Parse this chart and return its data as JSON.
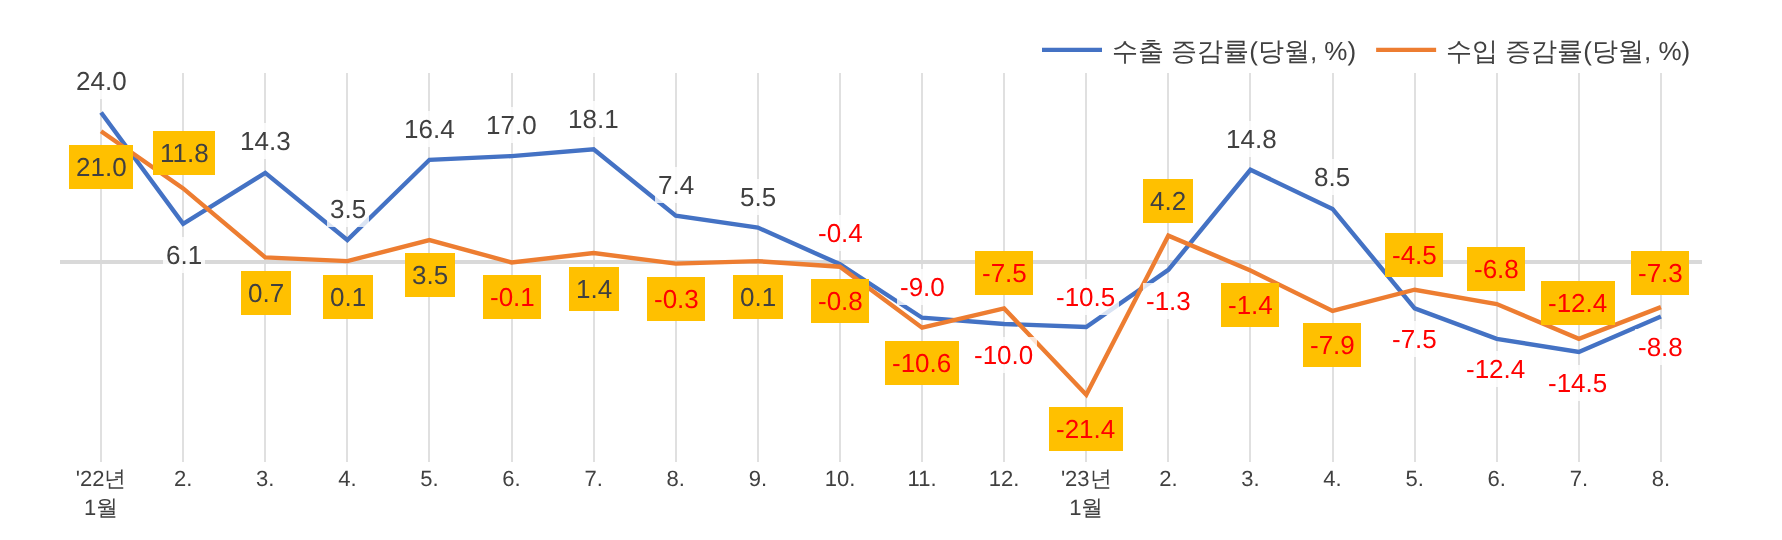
{
  "chart_data": {
    "type": "line",
    "categories": [
      "'22년\n1월",
      "2.",
      "3.",
      "4.",
      "5.",
      "6.",
      "7.",
      "8.",
      "9.",
      "10.",
      "11.",
      "12.",
      "'23년\n1월",
      "2.",
      "3.",
      "4.",
      "5.",
      "6.",
      "7.",
      "8."
    ],
    "series": [
      {
        "name": "수출 증감률(당월, %)",
        "color": "#4472c4",
        "values": [
          24.0,
          6.1,
          14.3,
          3.5,
          16.4,
          17.0,
          18.1,
          7.4,
          5.5,
          -0.4,
          -9.0,
          -10.0,
          -10.5,
          -1.3,
          14.8,
          8.5,
          -7.5,
          -12.4,
          -14.5,
          -8.8
        ],
        "value_labels": [
          "24.0",
          "6.1",
          "14.3",
          "3.5",
          "16.4",
          "17.0",
          "18.1",
          "7.4",
          "5.5",
          "-0.4",
          "-9.0",
          "-10.0",
          "-10.5",
          "-1.3",
          "14.8",
          "8.5",
          "-7.5",
          "-12.4",
          "-14.5",
          "-8.8"
        ]
      },
      {
        "name": "수입 증감률(당월, %)",
        "color": "#ed7d31",
        "values": [
          21.0,
          11.8,
          0.7,
          0.1,
          3.5,
          -0.1,
          1.4,
          -0.3,
          0.1,
          -0.8,
          -10.6,
          -7.5,
          -21.4,
          4.2,
          -1.4,
          -7.9,
          -4.5,
          -6.8,
          -12.4,
          -7.3
        ],
        "value_labels": [
          "21.0",
          "11.8",
          "0.7",
          "0.1",
          "3.5",
          "-0.1",
          "1.4",
          "-0.3",
          "0.1",
          "-0.8",
          "-10.6",
          "-7.5",
          "-21.4",
          "4.2",
          "-1.4",
          "-7.9",
          "-4.5",
          "-6.8",
          "-12.4",
          "-7.3"
        ]
      }
    ],
    "grid": "x",
    "legend": "top right",
    "marker": "none",
    "line_style": "solid"
  }
}
